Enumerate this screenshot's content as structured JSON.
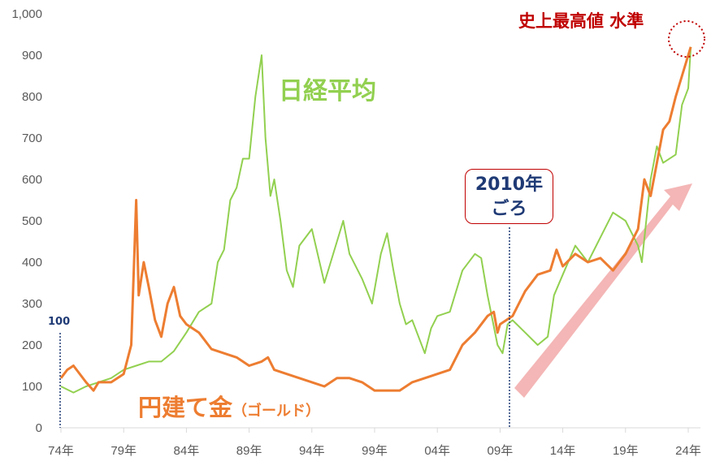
{
  "chart_data": {
    "type": "line",
    "ylim": [
      0,
      1000
    ],
    "yticks": [
      "0",
      "100",
      "200",
      "300",
      "400",
      "500",
      "600",
      "700",
      "800",
      "900",
      "1,000"
    ],
    "xlim": [
      1974,
      2025.3
    ],
    "xticks": [
      {
        "year": 1974,
        "label": "74年"
      },
      {
        "year": 1979,
        "label": "79年"
      },
      {
        "year": 1984,
        "label": "84年"
      },
      {
        "year": 1989,
        "label": "89年"
      },
      {
        "year": 1994,
        "label": "94年"
      },
      {
        "year": 1999,
        "label": "99年"
      },
      {
        "year": 2004,
        "label": "04年"
      },
      {
        "year": 2009,
        "label": "09年"
      },
      {
        "year": 2014,
        "label": "14年"
      },
      {
        "year": 2019,
        "label": "19年"
      },
      {
        "year": 2024,
        "label": "24年"
      }
    ],
    "grid": false,
    "series": [
      {
        "name": "日経平均",
        "color": "#92d050",
        "points": [
          [
            1974,
            100
          ],
          [
            1975,
            85
          ],
          [
            1976,
            100
          ],
          [
            1977,
            110
          ],
          [
            1978,
            120
          ],
          [
            1979,
            140
          ],
          [
            1980,
            150
          ],
          [
            1981,
            160
          ],
          [
            1982,
            160
          ],
          [
            1983,
            185
          ],
          [
            1984,
            230
          ],
          [
            1985,
            280
          ],
          [
            1986,
            300
          ],
          [
            1986.5,
            400
          ],
          [
            1987,
            430
          ],
          [
            1987.5,
            550
          ],
          [
            1988,
            580
          ],
          [
            1988.5,
            650
          ],
          [
            1989,
            650
          ],
          [
            1989.5,
            800
          ],
          [
            1990,
            900
          ],
          [
            1990.3,
            700
          ],
          [
            1990.7,
            560
          ],
          [
            1991,
            600
          ],
          [
            1991.5,
            500
          ],
          [
            1992,
            380
          ],
          [
            1992.5,
            340
          ],
          [
            1993,
            440
          ],
          [
            1994,
            480
          ],
          [
            1995,
            350
          ],
          [
            1996,
            450
          ],
          [
            1996.5,
            500
          ],
          [
            1997,
            420
          ],
          [
            1998,
            360
          ],
          [
            1998.8,
            300
          ],
          [
            1999.5,
            420
          ],
          [
            2000,
            470
          ],
          [
            2000.5,
            380
          ],
          [
            2001,
            300
          ],
          [
            2001.5,
            250
          ],
          [
            2002,
            260
          ],
          [
            2003,
            180
          ],
          [
            2003.5,
            240
          ],
          [
            2004,
            270
          ],
          [
            2005,
            280
          ],
          [
            2006,
            380
          ],
          [
            2007,
            420
          ],
          [
            2007.5,
            410
          ],
          [
            2008,
            320
          ],
          [
            2008.8,
            200
          ],
          [
            2009.2,
            180
          ],
          [
            2009.6,
            250
          ],
          [
            2010,
            260
          ],
          [
            2011,
            230
          ],
          [
            2012,
            200
          ],
          [
            2012.8,
            220
          ],
          [
            2013.3,
            320
          ],
          [
            2014,
            370
          ],
          [
            2015,
            440
          ],
          [
            2016,
            400
          ],
          [
            2017,
            460
          ],
          [
            2018,
            520
          ],
          [
            2019,
            500
          ],
          [
            2020,
            440
          ],
          [
            2020.3,
            400
          ],
          [
            2021,
            600
          ],
          [
            2021.5,
            680
          ],
          [
            2022,
            640
          ],
          [
            2023,
            660
          ],
          [
            2023.5,
            780
          ],
          [
            2024,
            820
          ],
          [
            2024.2,
            920
          ]
        ]
      },
      {
        "name": "円建て金（ゴールド）",
        "color": "#ed7d31",
        "points": [
          [
            1974,
            120
          ],
          [
            1974.5,
            140
          ],
          [
            1975,
            150
          ],
          [
            1976,
            110
          ],
          [
            1976.6,
            90
          ],
          [
            1977,
            110
          ],
          [
            1978,
            110
          ],
          [
            1979,
            130
          ],
          [
            1979.6,
            200
          ],
          [
            1980,
            550
          ],
          [
            1980.2,
            320
          ],
          [
            1980.6,
            400
          ],
          [
            1981,
            340
          ],
          [
            1981.5,
            260
          ],
          [
            1982,
            220
          ],
          [
            1982.5,
            300
          ],
          [
            1983,
            340
          ],
          [
            1983.5,
            270
          ],
          [
            1984,
            250
          ],
          [
            1985,
            230
          ],
          [
            1986,
            190
          ],
          [
            1987,
            180
          ],
          [
            1988,
            170
          ],
          [
            1989,
            150
          ],
          [
            1990,
            160
          ],
          [
            1990.5,
            170
          ],
          [
            1991,
            140
          ],
          [
            1992,
            130
          ],
          [
            1993,
            120
          ],
          [
            1994,
            110
          ],
          [
            1995,
            100
          ],
          [
            1996,
            120
          ],
          [
            1997,
            120
          ],
          [
            1998,
            110
          ],
          [
            1999,
            90
          ],
          [
            2000,
            90
          ],
          [
            2001,
            90
          ],
          [
            2002,
            110
          ],
          [
            2003,
            120
          ],
          [
            2004,
            130
          ],
          [
            2005,
            140
          ],
          [
            2006,
            200
          ],
          [
            2007,
            230
          ],
          [
            2008,
            270
          ],
          [
            2008.5,
            280
          ],
          [
            2008.8,
            230
          ],
          [
            2009,
            250
          ],
          [
            2010,
            270
          ],
          [
            2011,
            330
          ],
          [
            2012,
            370
          ],
          [
            2013,
            380
          ],
          [
            2013.5,
            430
          ],
          [
            2014,
            390
          ],
          [
            2015,
            420
          ],
          [
            2016,
            400
          ],
          [
            2017,
            410
          ],
          [
            2018,
            380
          ],
          [
            2019,
            420
          ],
          [
            2020,
            480
          ],
          [
            2020.5,
            600
          ],
          [
            2021,
            560
          ],
          [
            2022,
            720
          ],
          [
            2022.5,
            740
          ],
          [
            2023,
            800
          ],
          [
            2024,
            900
          ],
          [
            2024.2,
            920
          ]
        ]
      }
    ],
    "annotations": {
      "base_label": "100",
      "nikkei_label": "日経平均",
      "gold_label": "円建て金",
      "gold_sub": "（ゴールド）",
      "box_line1": "2010年",
      "box_line2": "ごろ",
      "record_label": "史上最高値 水準"
    },
    "colors": {
      "annotation_navy": "#1f3a75",
      "record_red": "#c00000",
      "arrow_pink": "#f4b6b6"
    }
  }
}
